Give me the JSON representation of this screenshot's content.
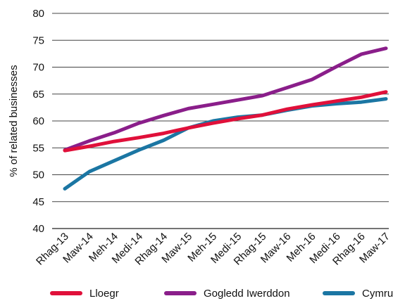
{
  "chart_data": {
    "type": "line",
    "title": "",
    "xlabel": "",
    "ylabel": "% of related businesses",
    "ylim": [
      40,
      80
    ],
    "yticks": [
      40,
      45,
      50,
      55,
      60,
      65,
      70,
      75,
      80
    ],
    "grid": "horizontal",
    "legend_position": "bottom",
    "categories": [
      "Rhag-13",
      "Maw-14",
      "Meh-14",
      "Medi-14",
      "Rhag-14",
      "Maw-15",
      "Meh-15",
      "Medi-15",
      "Rhag-15",
      "Maw-16",
      "Meh-16",
      "Medi-16",
      "Rhag-16",
      "Maw-17"
    ],
    "series": [
      {
        "name": "Lloegr",
        "color": "#e0103a",
        "values": [
          54.5,
          55.3,
          56.2,
          56.9,
          57.7,
          58.7,
          59.6,
          60.4,
          61.1,
          62.2,
          63.0,
          63.7,
          64.4,
          65.4
        ]
      },
      {
        "name": "Gogledd Iwerddon",
        "color": "#8a1e8a",
        "values": [
          54.6,
          56.3,
          57.8,
          59.6,
          61.0,
          62.3,
          63.1,
          63.9,
          64.7,
          66.2,
          67.7,
          70.1,
          72.4,
          73.5
        ]
      },
      {
        "name": "Cymru",
        "color": "#1b76a3",
        "values": [
          47.4,
          50.6,
          52.6,
          54.6,
          56.4,
          58.7,
          60.0,
          60.7,
          61.1,
          62.0,
          62.8,
          63.2,
          63.5,
          64.1
        ]
      }
    ]
  }
}
